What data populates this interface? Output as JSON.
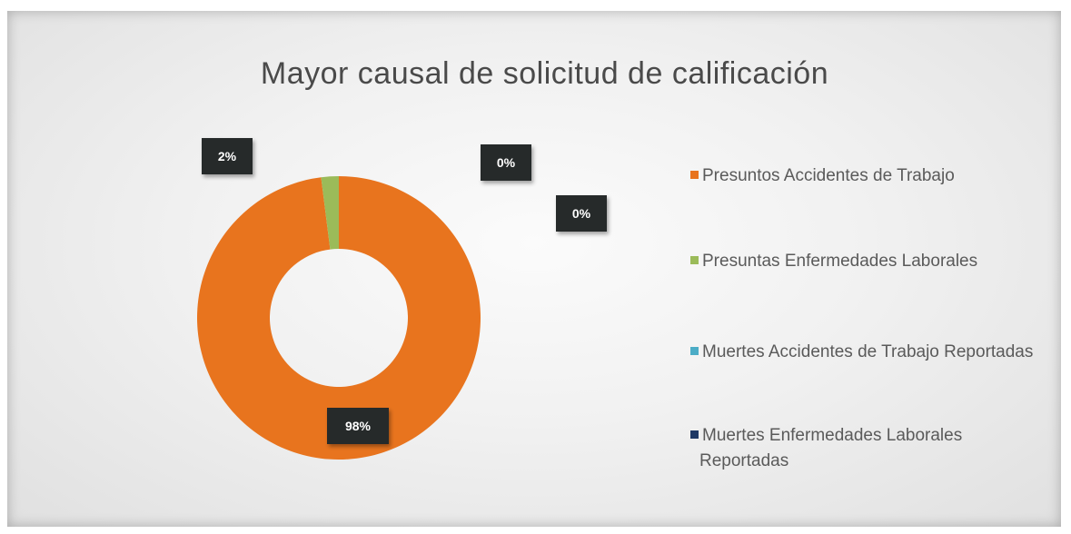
{
  "chart_data": {
    "type": "pie",
    "title": "Mayor causal  de solicitud de calificación",
    "categories": [
      "Presuntos Accidentes de Trabajo",
      "Presuntas Enfermedades Laborales",
      "Muertes Accidentes de Trabajo Reportadas",
      "Muertes Enfermedades Laborales Reportadas"
    ],
    "values": [
      98,
      2,
      0,
      0
    ],
    "data_labels": [
      "98%",
      "2%",
      "0%",
      "0%"
    ],
    "colors": [
      "#e8741e",
      "#9bbb59",
      "#4bacc6",
      "#1f3864"
    ],
    "donut": true,
    "legend_position": "right"
  }
}
